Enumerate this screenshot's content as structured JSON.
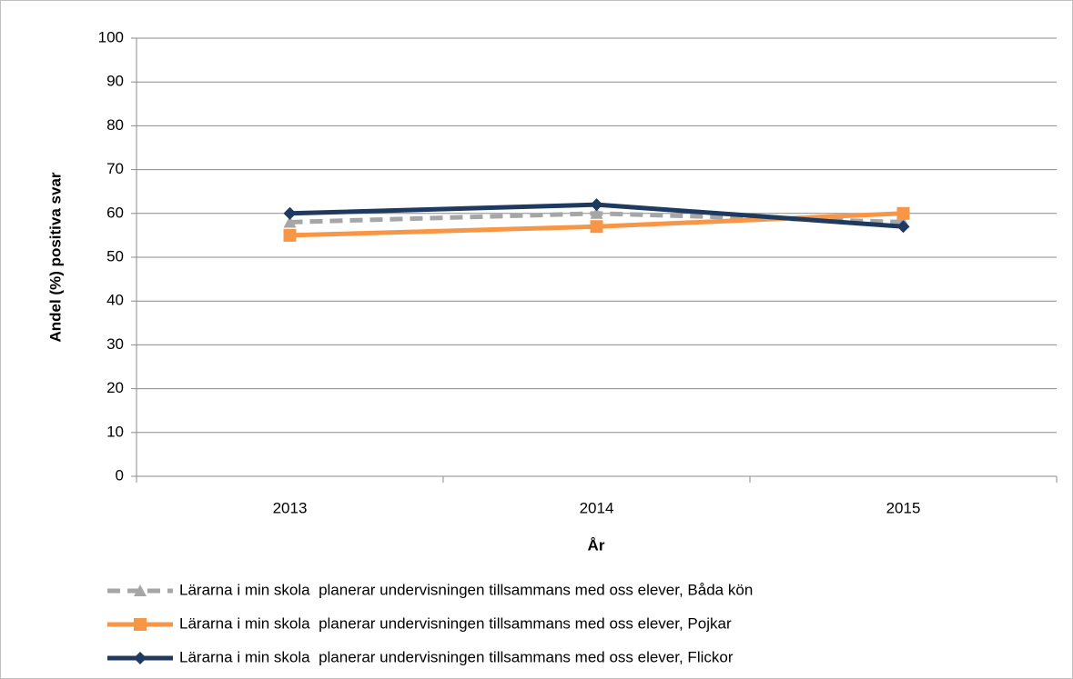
{
  "chart_data": {
    "type": "line",
    "categories": [
      "2013",
      "2014",
      "2015"
    ],
    "x_label": "År",
    "y_label": "Andel (%) positiva svar",
    "ylim": [
      0,
      100
    ],
    "yticks": [
      0,
      10,
      20,
      30,
      40,
      50,
      60,
      70,
      80,
      90,
      100
    ],
    "grid": true,
    "legend": "bottom",
    "series": [
      {
        "name": "Lärarna i min skola  planerar undervisningen tillsammans med oss elever, Båda kön",
        "color": "#a6a6a6",
        "dashed": true,
        "marker": "triangle",
        "values": [
          58,
          60,
          58
        ]
      },
      {
        "name": "Lärarna i min skola  planerar undervisningen tillsammans med oss elever, Pojkar",
        "color": "#f79646",
        "dashed": false,
        "marker": "square",
        "values": [
          55,
          57,
          60
        ]
      },
      {
        "name": "Lärarna i min skola  planerar undervisningen tillsammans med oss elever, Flickor",
        "color": "#1f3a60",
        "dashed": false,
        "marker": "diamond",
        "values": [
          60,
          62,
          57
        ]
      }
    ]
  }
}
